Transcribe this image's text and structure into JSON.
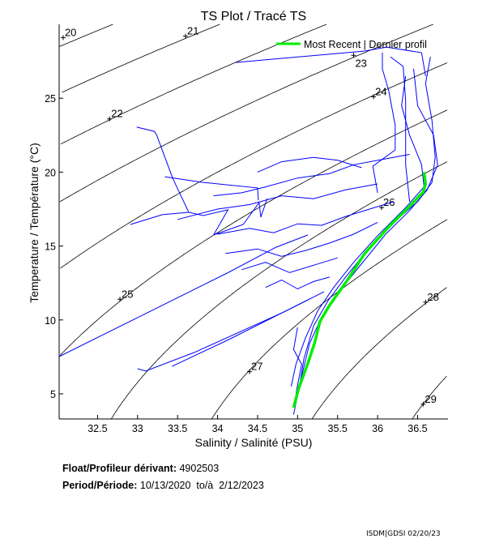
{
  "chart_data": {
    "type": "line",
    "title": "TS Plot / Tracé TS",
    "xlabel": "Salinity / Salinité (PSU)",
    "ylabel": "Temperature / Température (°C)",
    "xlim": [
      32.02,
      36.88
    ],
    "ylim": [
      3.3,
      30
    ],
    "x_ticks": [
      32.5,
      33,
      33.5,
      34,
      34.5,
      35,
      35.5,
      36,
      36.5
    ],
    "y_ticks": [
      5,
      10,
      15,
      20,
      25
    ],
    "grid": false,
    "legend": {
      "position": "top-right",
      "entries": [
        {
          "label": "Most Recent | Dernier profil",
          "color": "#00ee00"
        }
      ]
    },
    "density_contours": {
      "levels": [
        20,
        21,
        22,
        23,
        24,
        25,
        26,
        27,
        28,
        29
      ],
      "labels": [
        {
          "level": "20",
          "s": 32.07,
          "t": 29.1
        },
        {
          "level": "21",
          "s": 33.6,
          "t": 29.2
        },
        {
          "level": "22",
          "s": 32.65,
          "t": 23.6
        },
        {
          "level": "23",
          "s": 35.7,
          "t": 27.9
        },
        {
          "level": "24",
          "s": 35.95,
          "t": 25.1
        },
        {
          "level": "25",
          "s": 32.78,
          "t": 11.4
        },
        {
          "level": "26",
          "s": 36.05,
          "t": 17.6
        },
        {
          "level": "27",
          "s": 34.4,
          "t": 6.5
        },
        {
          "level": "28",
          "s": 36.6,
          "t": 11.2
        },
        {
          "level": "29",
          "s": 36.57,
          "t": 4.3
        }
      ],
      "color": "#000000"
    },
    "most_recent": {
      "color": "#00ee00",
      "points": [
        [
          34.95,
          4.07
        ],
        [
          35.01,
          5.3
        ],
        [
          35.13,
          7.1
        ],
        [
          35.21,
          8.4
        ],
        [
          35.28,
          9.9
        ],
        [
          35.4,
          11.0
        ],
        [
          35.61,
          12.6
        ],
        [
          35.84,
          14.5
        ],
        [
          36.14,
          16.3
        ],
        [
          36.42,
          17.8
        ],
        [
          36.57,
          18.65
        ],
        [
          36.6,
          19.2
        ],
        [
          36.58,
          20.0
        ]
      ]
    },
    "profiles_color": "#0000ff",
    "profiles": [
      [
        [
          34.95,
          3.6
        ],
        [
          35.02,
          5.4
        ],
        [
          35.08,
          7.4
        ],
        [
          35.2,
          9.6
        ],
        [
          35.38,
          11.3
        ],
        [
          35.6,
          12.9
        ],
        [
          35.9,
          14.9
        ],
        [
          36.2,
          16.6
        ],
        [
          36.5,
          18.0
        ],
        [
          36.68,
          19.3
        ],
        [
          36.72,
          21
        ],
        [
          36.68,
          23.5
        ],
        [
          36.6,
          26
        ],
        [
          36.66,
          27.8
        ]
      ],
      [
        [
          34.97,
          4.5
        ],
        [
          35.05,
          6.2
        ],
        [
          35.15,
          8.4
        ],
        [
          35.3,
          10.2
        ],
        [
          35.5,
          11.8
        ],
        [
          35.8,
          13.8
        ],
        [
          36.1,
          15.8
        ],
        [
          36.4,
          17.4
        ],
        [
          36.62,
          18.8
        ],
        [
          36.75,
          20.5
        ],
        [
          36.7,
          22.5
        ],
        [
          36.5,
          24.5
        ],
        [
          36.45,
          27
        ]
      ],
      [
        [
          34.92,
          5.5
        ],
        [
          34.98,
          7.0
        ],
        [
          35.1,
          8.8
        ],
        [
          35.25,
          10.6
        ],
        [
          35.45,
          12.2
        ],
        [
          35.7,
          13.9
        ],
        [
          36.0,
          15.7
        ],
        [
          36.35,
          17.6
        ],
        [
          36.58,
          19.0
        ],
        [
          36.55,
          20.5
        ],
        [
          36.4,
          22.5
        ],
        [
          36.3,
          24.5
        ],
        [
          36.35,
          26.5
        ]
      ],
      [
        [
          36.0,
          18.6
        ],
        [
          35.94,
          20.4
        ],
        [
          36.22,
          21.5
        ],
        [
          36.22,
          23.15
        ],
        [
          36.14,
          25.5
        ],
        [
          36.06,
          26.98
        ],
        [
          36.06,
          28.08
        ]
      ],
      [
        [
          36.4,
          18.0
        ],
        [
          36.35,
          20.5
        ],
        [
          36.35,
          23.15
        ],
        [
          36.35,
          24.8
        ],
        [
          36.32,
          27.15
        ],
        [
          36.16,
          27.8
        ]
      ],
      [
        [
          34.22,
          27.42
        ],
        [
          35.84,
          28.19
        ],
        [
          36.11,
          28.46
        ],
        [
          36.55,
          28.08
        ],
        [
          36.6,
          26.5
        ]
      ],
      [
        [
          32.99,
          23.04
        ],
        [
          33.21,
          22.76
        ],
        [
          33.24,
          22.49
        ],
        [
          33.44,
          19.58
        ],
        [
          33.64,
          17.28
        ],
        [
          33.82,
          17.06
        ],
        [
          34.13,
          17.45
        ],
        [
          33.95,
          15.75
        ],
        [
          34.32,
          16.46
        ],
        [
          34.52,
          17.94
        ],
        [
          34.54,
          16.95
        ],
        [
          34.62,
          18.21
        ]
      ],
      [
        [
          32.91,
          16.46
        ],
        [
          33.31,
          17.12
        ],
        [
          33.64,
          17.28
        ]
      ],
      [
        [
          33.34,
          19.69
        ],
        [
          33.81,
          19.31
        ],
        [
          34.5,
          18.93
        ],
        [
          34.51,
          18.1
        ]
      ],
      [
        [
          32.02,
          7.52
        ],
        [
          34.12,
          13.17
        ],
        [
          34.73,
          14.92
        ],
        [
          35.13,
          15.75
        ]
      ],
      [
        [
          33.0,
          6.7
        ],
        [
          33.1,
          6.54
        ],
        [
          33.71,
          7.8
        ],
        [
          34.83,
          10.54
        ],
        [
          35.33,
          11.9
        ]
      ],
      [
        [
          33.43,
          6.86
        ],
        [
          34.12,
          8.62
        ],
        [
          35.13,
          11.36
        ]
      ],
      [
        [
          34.0,
          15.8
        ],
        [
          34.4,
          16.2
        ],
        [
          34.7,
          15.9
        ],
        [
          35.0,
          16.5
        ],
        [
          35.3,
          16.4
        ],
        [
          35.6,
          17.0
        ],
        [
          35.9,
          17.5
        ],
        [
          36.2,
          18.0
        ]
      ],
      [
        [
          34.1,
          14.5
        ],
        [
          34.5,
          14.8
        ],
        [
          34.8,
          14.3
        ],
        [
          35.1,
          14.7
        ],
        [
          35.4,
          15.2
        ],
        [
          35.7,
          15.8
        ],
        [
          36.0,
          16.6
        ]
      ],
      [
        [
          34.3,
          13.4
        ],
        [
          34.6,
          13.9
        ],
        [
          34.9,
          13.2
        ],
        [
          35.2,
          13.7
        ],
        [
          35.5,
          14.2
        ]
      ],
      [
        [
          33.95,
          18.4
        ],
        [
          34.3,
          18.6
        ],
        [
          34.6,
          19.0
        ],
        [
          35.0,
          19.6
        ],
        [
          35.4,
          19.9
        ],
        [
          35.7,
          20.5
        ],
        [
          36.1,
          20.9
        ],
        [
          36.4,
          21.2
        ]
      ],
      [
        [
          34.6,
          12.2
        ],
        [
          34.8,
          12.7
        ],
        [
          35.0,
          12.1
        ],
        [
          35.2,
          12.6
        ],
        [
          35.4,
          12.9
        ]
      ],
      [
        [
          33.5,
          16.8
        ],
        [
          34.0,
          17.5
        ],
        [
          34.4,
          17.8
        ],
        [
          34.8,
          18.4
        ],
        [
          35.2,
          18.2
        ],
        [
          35.6,
          18.8
        ],
        [
          36.0,
          19.2
        ]
      ],
      [
        [
          35.0,
          9.5
        ],
        [
          34.95,
          8.0
        ],
        [
          35.05,
          7.0
        ],
        [
          34.98,
          5.0
        ]
      ],
      [
        [
          35.8,
          20.3
        ],
        [
          35.5,
          20.8
        ],
        [
          35.2,
          21.0
        ],
        [
          34.8,
          20.7
        ],
        [
          34.5,
          20.0
        ]
      ]
    ]
  },
  "footer": {
    "float_label": "Float/Profileur dérivant:",
    "float_value": "4902503",
    "period_label": "Period/Période:",
    "period_value": "10/13/2020  to/à  2/12/2023",
    "stamp": "ISDM|GDSI 02/20/23"
  }
}
